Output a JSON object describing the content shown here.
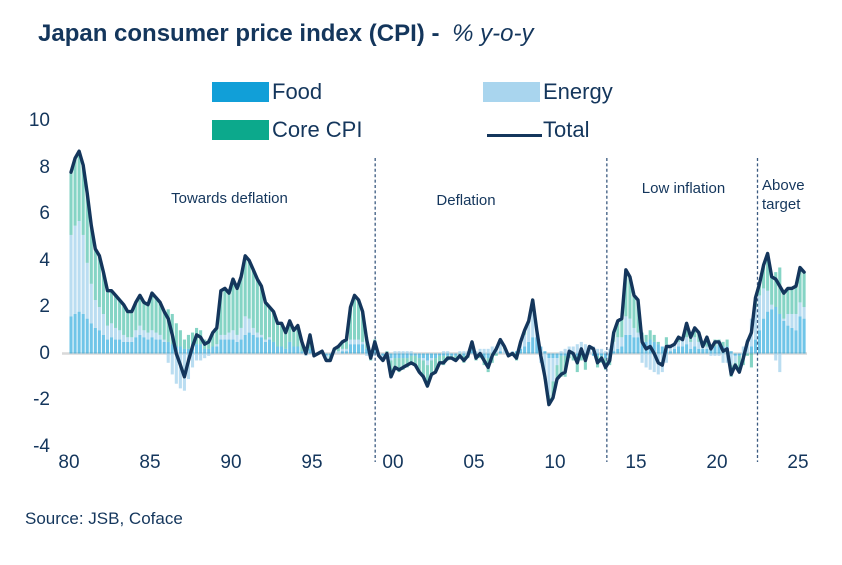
{
  "title": {
    "main": "Japan consumer price index (CPI) - ",
    "units": "% y-o-y"
  },
  "source": "Source: JSB, Coface",
  "colors": {
    "text_navy": "#14365c",
    "food_blue": "#119fd8",
    "energy_light_blue": "#a9d5ee",
    "core_teal": "#0ca98c",
    "total_navy": "#14365c",
    "zero_line_gray": "#d9d9d9",
    "divider_navy": "#3b5a80"
  },
  "chart_data": {
    "type": "bar",
    "stacked": true,
    "overlay": "line",
    "grid": false,
    "legend_position": "top",
    "x_start_year": 1980,
    "x_step_years": 0.25,
    "x_tick_years": [
      1980,
      1985,
      1990,
      1995,
      2000,
      2005,
      2010,
      2015,
      2020,
      2025
    ],
    "x_tick_labels": [
      "80",
      "85",
      "90",
      "95",
      "00",
      "05",
      "10",
      "15",
      "20",
      "25"
    ],
    "ylim": [
      -4,
      10
    ],
    "yticks": [
      10,
      8,
      6,
      4,
      2,
      0,
      -2,
      -4
    ],
    "dividers_years": [
      1998.9,
      2013.2,
      2022.5
    ],
    "annotations": [
      {
        "text": "Towards deflation",
        "x_year": 1989.9,
        "y_value": 6.7
      },
      {
        "text": "Deflation",
        "x_year": 2004.5,
        "y_value": 6.6
      },
      {
        "text": "Low inflation",
        "x_year": 2017.9,
        "y_value": 7.1
      },
      {
        "text": "Above target",
        "x_year": 2023.3,
        "y_value": 7.2
      }
    ],
    "series": [
      {
        "name": "Food",
        "color": "#119fd8",
        "values": [
          1.6,
          1.7,
          1.8,
          1.7,
          1.5,
          1.3,
          1.1,
          1.0,
          0.8,
          0.6,
          0.7,
          0.6,
          0.6,
          0.5,
          0.5,
          0.5,
          0.7,
          0.8,
          0.7,
          0.6,
          0.7,
          0.6,
          0.6,
          0.5,
          0.5,
          0.4,
          0.3,
          0.3,
          0.2,
          0.2,
          0.3,
          0.4,
          0.4,
          0.2,
          0.2,
          0.3,
          0.3,
          0.6,
          0.6,
          0.6,
          0.6,
          0.5,
          0.6,
          0.8,
          0.9,
          0.8,
          0.7,
          0.7,
          0.5,
          0.6,
          0.5,
          0.3,
          0.3,
          0.2,
          0.5,
          0.3,
          0.3,
          0.1,
          0.0,
          0.2,
          -0.1,
          0.0,
          0.0,
          -0.1,
          -0.1,
          0.0,
          0.0,
          0.1,
          0.1,
          0.4,
          0.4,
          0.4,
          0.4,
          0.2,
          0.1,
          0.2,
          0.0,
          -0.1,
          -0.1,
          -0.2,
          -0.2,
          -0.2,
          -0.2,
          -0.2,
          -0.1,
          -0.1,
          -0.2,
          -0.2,
          -0.3,
          -0.2,
          -0.2,
          -0.1,
          -0.1,
          -0.1,
          -0.1,
          -0.1,
          0.0,
          -0.1,
          -0.1,
          0.2,
          -0.1,
          -0.1,
          -0.2,
          -0.2,
          0.0,
          0.0,
          0.1,
          0.0,
          0.0,
          0.0,
          0.1,
          0.2,
          0.3,
          0.5,
          0.7,
          0.7,
          0.3,
          0.1,
          -0.2,
          -0.2,
          -0.2,
          -0.1,
          -0.1,
          0.0,
          -0.1,
          -0.1,
          0.0,
          -0.1,
          0.0,
          -0.1,
          -0.1,
          -0.1,
          -0.2,
          -0.1,
          0.1,
          0.2,
          0.3,
          0.8,
          0.8,
          0.7,
          0.7,
          0.5,
          0.5,
          0.6,
          0.5,
          0.4,
          0.3,
          0.2,
          0.1,
          0.2,
          0.3,
          0.3,
          0.4,
          0.2,
          0.3,
          0.2,
          0.2,
          0.2,
          0.2,
          0.3,
          0.4,
          0.3,
          0.3,
          0.1,
          -0.1,
          -0.1,
          -0.1,
          0.0,
          0.3,
          0.6,
          1.0,
          1.5,
          1.8,
          1.9,
          2.0,
          1.7,
          1.4,
          1.2,
          1.1,
          1.0,
          1.6,
          1.5
        ]
      },
      {
        "name": "Energy",
        "color": "#a9d5ee",
        "values": [
          3.5,
          3.8,
          3.9,
          3.4,
          2.4,
          1.7,
          1.2,
          1.0,
          0.9,
          0.6,
          0.6,
          0.5,
          0.4,
          0.3,
          0.2,
          0.2,
          0.3,
          0.4,
          0.3,
          0.3,
          0.3,
          0.3,
          0.2,
          0.1,
          -0.4,
          -0.9,
          -1.3,
          -1.5,
          -1.6,
          -1.1,
          -0.6,
          -0.3,
          -0.3,
          -0.2,
          -0.1,
          0.0,
          0.1,
          0.2,
          0.2,
          0.3,
          0.4,
          0.3,
          0.5,
          0.8,
          0.6,
          0.3,
          0.2,
          0.1,
          0.1,
          0.1,
          0.0,
          0.0,
          0.0,
          0.0,
          0.0,
          0.0,
          0.0,
          0.0,
          -0.1,
          0.0,
          0.0,
          0.0,
          0.0,
          -0.1,
          0.0,
          0.1,
          0.1,
          0.1,
          0.1,
          0.2,
          0.2,
          0.2,
          0.1,
          -0.1,
          -0.2,
          -0.1,
          -0.1,
          -0.1,
          0.0,
          -0.1,
          0.1,
          0.1,
          0.1,
          0.1,
          0.1,
          0.0,
          0.0,
          -0.1,
          -0.2,
          -0.1,
          0.0,
          0.0,
          0.1,
          0.1,
          0.0,
          0.0,
          0.1,
          0.1,
          0.1,
          0.2,
          0.1,
          0.2,
          0.2,
          0.2,
          0.3,
          0.3,
          0.4,
          0.2,
          0.0,
          0.1,
          0.0,
          0.3,
          0.5,
          0.8,
          1.1,
          0.3,
          -0.4,
          -1.0,
          -1.6,
          -1.0,
          -0.3,
          0.1,
          0.2,
          0.3,
          0.3,
          0.4,
          0.5,
          0.4,
          0.3,
          0.3,
          0.2,
          0.2,
          0.1,
          0.2,
          0.4,
          0.5,
          0.4,
          0.8,
          0.7,
          0.4,
          0.2,
          -0.4,
          -0.6,
          -0.7,
          -0.8,
          -0.9,
          -0.8,
          -0.4,
          0.2,
          0.2,
          0.2,
          0.3,
          0.3,
          0.3,
          0.4,
          0.3,
          0.1,
          0.1,
          -0.1,
          -0.1,
          -0.1,
          -0.4,
          -0.4,
          -0.5,
          -0.3,
          0.0,
          0.3,
          0.6,
          1.2,
          1.4,
          1.5,
          1.3,
          0.9,
          0.2,
          -0.3,
          -0.8,
          0.1,
          0.5,
          0.6,
          0.7,
          0.6,
          0.5
        ]
      },
      {
        "name": "Core CPI",
        "color": "#0ca98c",
        "values": [
          2.7,
          2.9,
          3.0,
          3.0,
          3.0,
          2.5,
          2.2,
          2.2,
          1.8,
          1.5,
          1.4,
          1.4,
          1.3,
          1.3,
          1.1,
          1.1,
          1.2,
          1.3,
          1.2,
          1.2,
          1.6,
          1.5,
          1.4,
          1.2,
          1.4,
          1.3,
          1.0,
          0.7,
          0.4,
          0.6,
          0.6,
          0.7,
          0.6,
          0.4,
          0.4,
          0.6,
          0.7,
          1.9,
          2.0,
          1.7,
          2.2,
          2.0,
          2.2,
          2.6,
          2.5,
          2.5,
          2.3,
          2.1,
          1.6,
          1.3,
          1.3,
          1.0,
          1.0,
          0.7,
          0.9,
          0.7,
          0.9,
          0.4,
          0.1,
          0.6,
          0.0,
          0.0,
          0.1,
          -0.1,
          -0.2,
          0.1,
          0.2,
          0.3,
          0.4,
          1.4,
          1.9,
          1.7,
          1.3,
          0.5,
          -0.1,
          0.4,
          0.0,
          -0.1,
          0.1,
          -0.7,
          -0.5,
          -0.6,
          -0.5,
          -0.4,
          -0.4,
          -0.4,
          -0.6,
          -0.7,
          -0.9,
          -0.6,
          -0.6,
          -0.3,
          -0.4,
          -0.2,
          -0.1,
          -0.2,
          -0.2,
          -0.3,
          -0.1,
          0.1,
          -0.2,
          -0.1,
          -0.3,
          -0.6,
          -0.4,
          -0.1,
          0.1,
          0.1,
          -0.1,
          -0.1,
          -0.3,
          0.0,
          0.2,
          0.1,
          0.5,
          0.0,
          0.0,
          -0.1,
          -0.4,
          -0.7,
          -0.6,
          -0.9,
          -0.9,
          -0.2,
          -0.2,
          -0.7,
          -0.3,
          -0.6,
          0.0,
          0.0,
          -0.5,
          -0.3,
          -0.5,
          -0.4,
          0.4,
          0.7,
          0.8,
          2.0,
          1.8,
          1.4,
          1.4,
          0.4,
          0.3,
          0.4,
          0.3,
          0.1,
          0.0,
          0.5,
          0.0,
          0.0,
          0.2,
          0.0,
          0.6,
          0.2,
          0.4,
          0.4,
          0.0,
          0.4,
          0.1,
          0.3,
          0.2,
          0.2,
          0.3,
          -0.5,
          -0.1,
          -0.7,
          -0.4,
          -0.1,
          -0.6,
          0.4,
          0.5,
          1.0,
          1.6,
          1.2,
          1.5,
          2.0,
          1.1,
          1.1,
          1.1,
          1.2,
          1.5,
          1.5
        ]
      }
    ],
    "line_series": {
      "name": "Total",
      "color": "#14365c",
      "values": [
        7.8,
        8.4,
        8.7,
        8.1,
        6.9,
        5.5,
        4.5,
        4.2,
        3.5,
        2.7,
        2.7,
        2.5,
        2.3,
        2.1,
        1.8,
        1.8,
        2.2,
        2.5,
        2.2,
        2.1,
        2.6,
        2.4,
        2.2,
        1.8,
        1.5,
        0.8,
        0.0,
        -0.5,
        -1.0,
        -0.3,
        0.3,
        0.8,
        0.7,
        0.4,
        0.5,
        0.9,
        1.1,
        2.7,
        2.8,
        2.6,
        3.2,
        2.8,
        3.3,
        4.2,
        4.0,
        3.6,
        3.2,
        2.9,
        2.2,
        2.0,
        1.8,
        1.3,
        1.3,
        0.9,
        1.4,
        1.0,
        1.2,
        0.5,
        0.0,
        0.8,
        -0.1,
        0.0,
        0.1,
        -0.3,
        -0.3,
        0.2,
        0.3,
        0.5,
        0.6,
        2.0,
        2.5,
        2.3,
        1.8,
        0.6,
        -0.2,
        0.5,
        -0.1,
        -0.3,
        0.0,
        -1.0,
        -0.6,
        -0.7,
        -0.6,
        -0.5,
        -0.4,
        -0.5,
        -0.8,
        -1.0,
        -1.4,
        -0.9,
        -0.8,
        -0.4,
        -0.4,
        -0.2,
        -0.2,
        -0.3,
        -0.1,
        -0.3,
        -0.1,
        0.5,
        -0.2,
        0.0,
        -0.3,
        -0.6,
        -0.1,
        0.2,
        0.6,
        0.3,
        -0.1,
        0.0,
        -0.2,
        0.5,
        1.0,
        1.4,
        2.3,
        1.0,
        -0.1,
        -1.0,
        -2.2,
        -1.9,
        -1.1,
        -0.9,
        -0.8,
        0.1,
        0.0,
        -0.4,
        0.2,
        -0.3,
        0.3,
        0.2,
        -0.4,
        -0.2,
        -0.6,
        -0.3,
        0.9,
        1.4,
        1.5,
        3.6,
        3.3,
        2.5,
        2.3,
        0.5,
        0.2,
        0.3,
        0.0,
        -0.4,
        -0.5,
        0.3,
        0.3,
        0.4,
        0.7,
        0.6,
        1.3,
        0.7,
        1.1,
        0.9,
        0.3,
        0.7,
        0.2,
        0.5,
        0.5,
        0.1,
        0.2,
        -0.9,
        -0.5,
        -0.8,
        -0.2,
        0.5,
        0.9,
        2.4,
        3.0,
        3.8,
        4.3,
        3.3,
        3.2,
        2.9,
        2.6,
        2.8,
        2.8,
        2.9,
        3.7,
        3.5
      ]
    }
  }
}
